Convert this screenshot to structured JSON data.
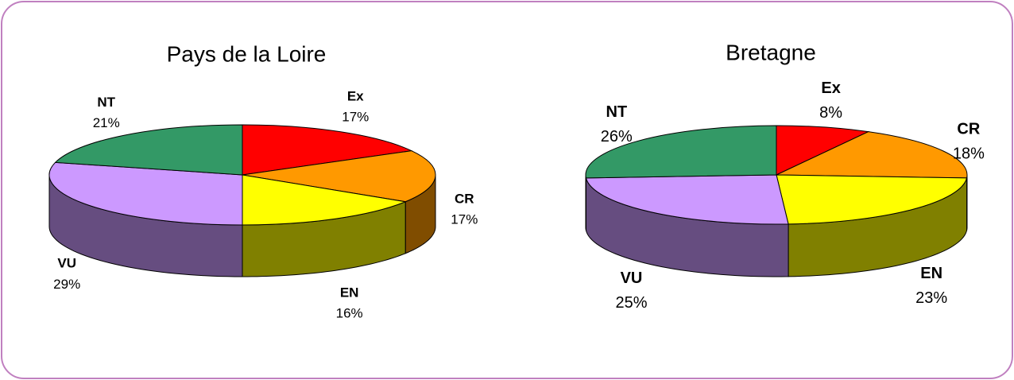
{
  "chart_data": [
    {
      "type": "pie",
      "title": "Pays de la Loire",
      "categories": [
        "Ex",
        "CR",
        "EN",
        "VU",
        "NT"
      ],
      "values": [
        17,
        17,
        16,
        29,
        21
      ],
      "value_labels": [
        "17%",
        "17%",
        "16%",
        "29%",
        "21%"
      ],
      "colors": [
        "#ff0000",
        "#ff9900",
        "#ffff00",
        "#cc99ff",
        "#339966"
      ]
    },
    {
      "type": "pie",
      "title": "Bretagne",
      "categories": [
        "Ex",
        "CR",
        "EN",
        "VU",
        "NT"
      ],
      "values": [
        8,
        18,
        23,
        25,
        26
      ],
      "value_labels": [
        "8%",
        "18%",
        "23%",
        "25%",
        "26%"
      ],
      "colors": [
        "#ff0000",
        "#ff9900",
        "#ffff00",
        "#cc99ff",
        "#339966"
      ]
    }
  ]
}
